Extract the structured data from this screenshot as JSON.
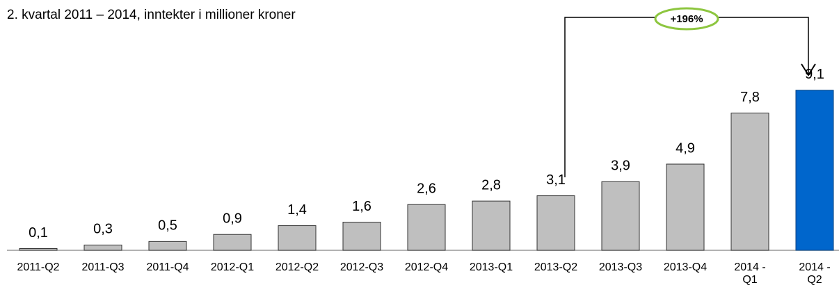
{
  "chart_data": {
    "type": "bar",
    "subtitle": "2. kvartal 2011 – 2014, inntekter i millioner kroner",
    "categories": [
      "2011-Q2",
      "2011-Q3",
      "2011-Q4",
      "2012-Q1",
      "2012-Q2",
      "2012-Q3",
      "2012-Q4",
      "2013-Q1",
      "2013-Q2",
      "2013-Q3",
      "2013-Q4",
      "2014 - Q1",
      "2014 - Q2"
    ],
    "values": [
      0.1,
      0.3,
      0.5,
      0.9,
      1.4,
      1.6,
      2.6,
      2.8,
      3.1,
      3.9,
      4.9,
      7.8,
      9.1
    ],
    "value_labels": [
      "0,1",
      "0,3",
      "0,5",
      "0,9",
      "1,4",
      "1,6",
      "2,6",
      "2,8",
      "3,1",
      "3,9",
      "4,9",
      "7,8",
      "9,1"
    ],
    "colors": [
      "#bfbfbf",
      "#bfbfbf",
      "#bfbfbf",
      "#bfbfbf",
      "#bfbfbf",
      "#bfbfbf",
      "#bfbfbf",
      "#bfbfbf",
      "#bfbfbf",
      "#bfbfbf",
      "#bfbfbf",
      "#bfbfbf",
      "#0066cc"
    ],
    "annotation": "+196%"
  }
}
